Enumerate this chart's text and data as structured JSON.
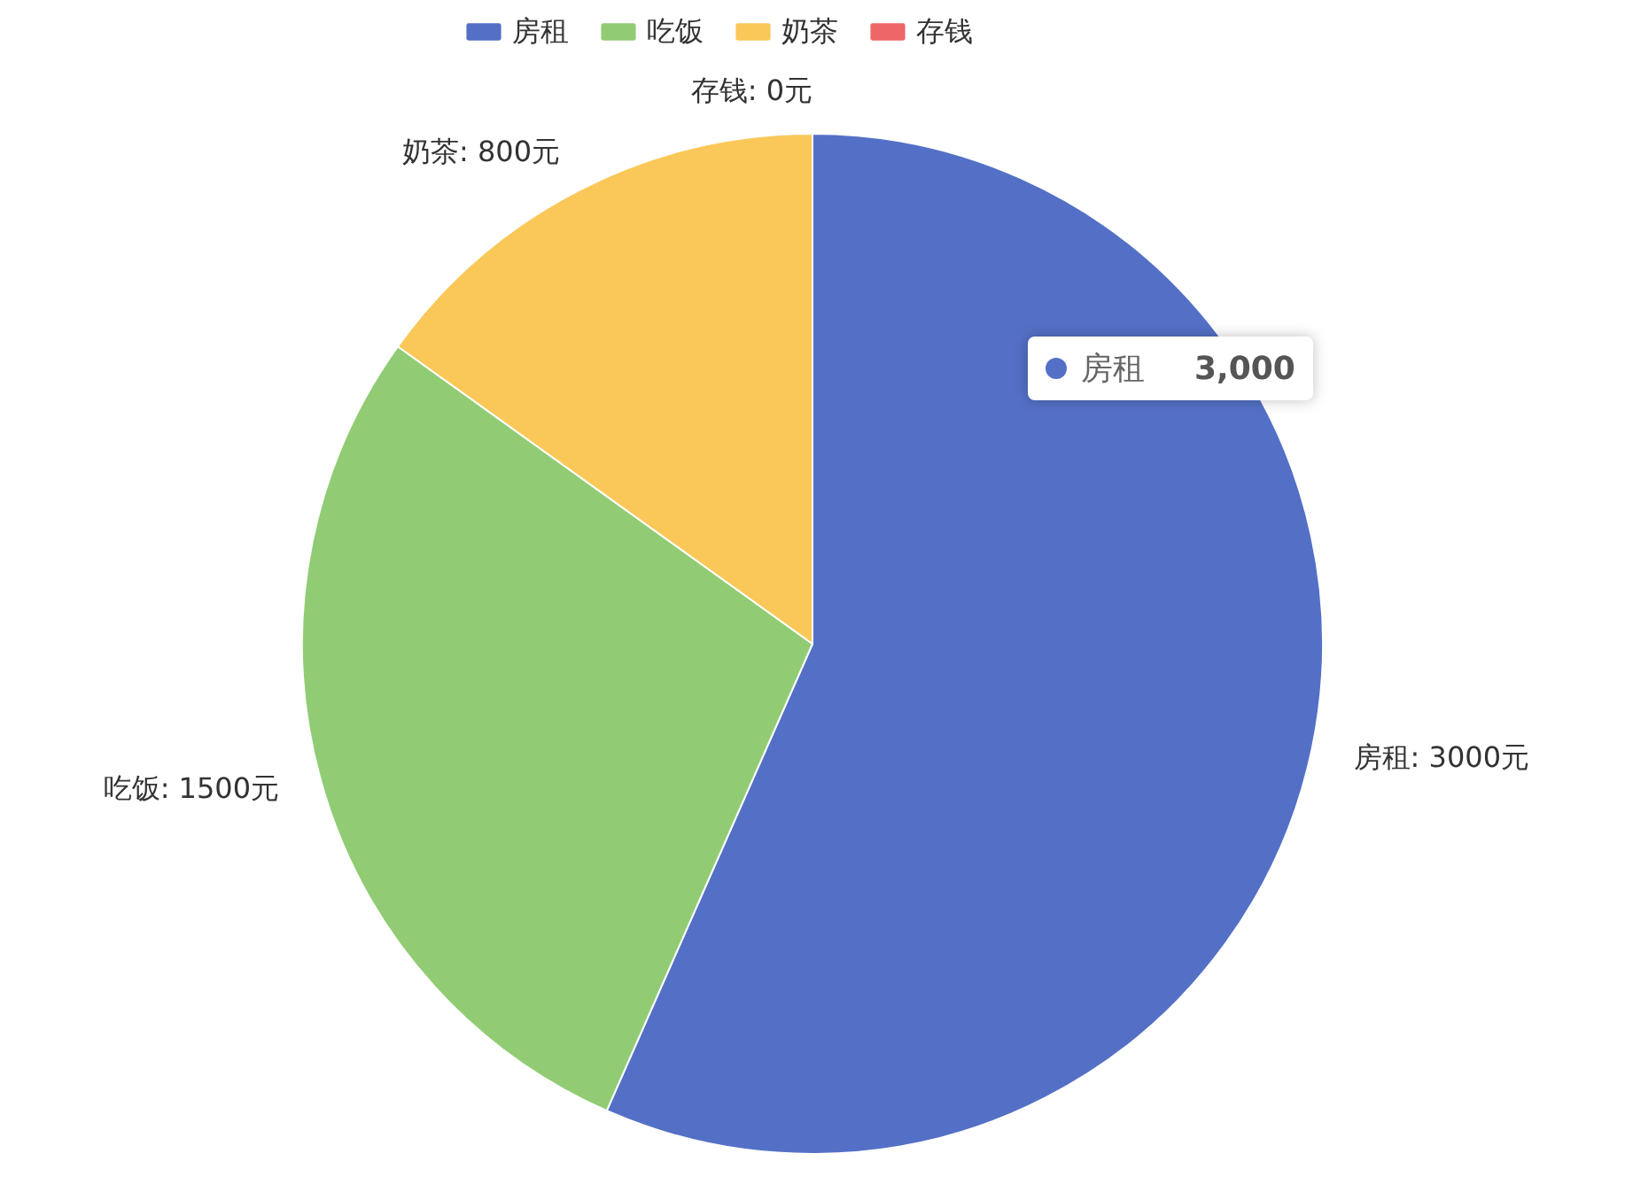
{
  "chart_data": {
    "type": "pie",
    "categories": [
      "房租",
      "吃饭",
      "奶茶",
      "存钱"
    ],
    "values": [
      3000,
      1500,
      800,
      0
    ],
    "colors": [
      "#5470c6",
      "#91cc75",
      "#fac858",
      "#ee6666"
    ],
    "value_labels": [
      "房租: 3000元",
      "吃饭: 1500元",
      "奶茶: 800元",
      "存钱: 0元"
    ],
    "legend": "top",
    "annotations": [
      "房租 3,000"
    ]
  }
}
